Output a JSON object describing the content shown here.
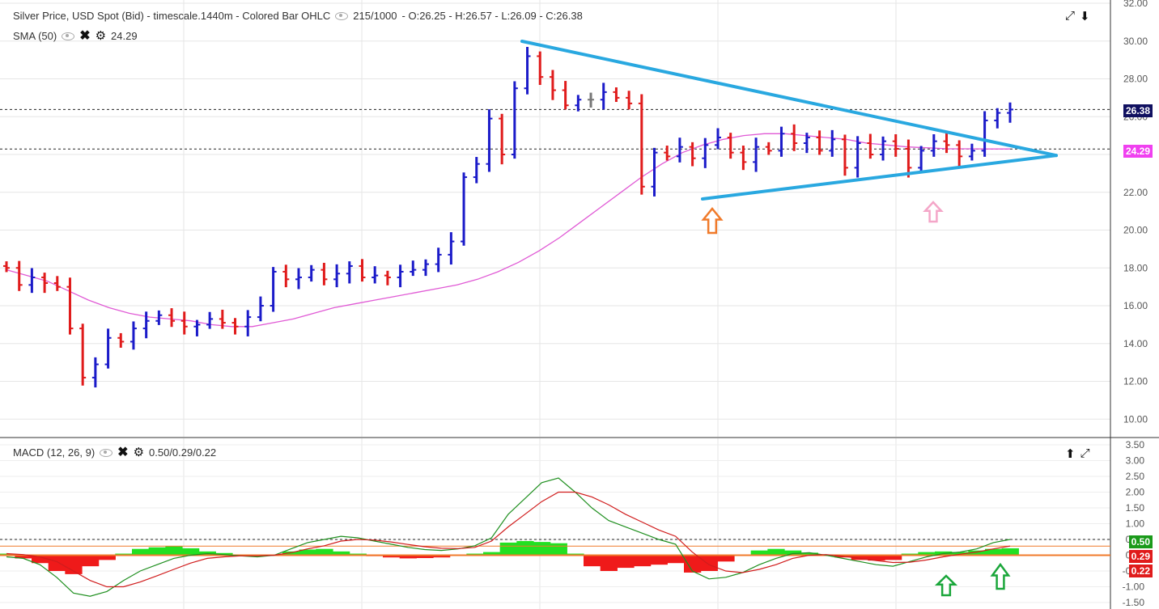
{
  "header": {
    "title": "Silver Price, USD Spot (Bid) - timescale.1440m - Colored Bar OHLC",
    "count": "215/1000",
    "ohlc": "- O:26.25 - H:26.57 - L:26.09 - C:26.38",
    "sma_label": "SMA (50)",
    "sma_value": "24.29"
  },
  "macd_header": {
    "label": "MACD (12, 26, 9)",
    "values": "0.50/0.29/0.22"
  },
  "price_tags": {
    "last": "26.38",
    "sma": "24.29"
  },
  "macd_tags": {
    "macd": "0.50",
    "signal": "0.29",
    "hist": "0.22"
  },
  "colors": {
    "up": "#1b1bc9",
    "down": "#e01b1b",
    "neutral": "#777777",
    "sma": "#e05ad5",
    "trendline": "#29a8e0",
    "macd_line": "#1f8f1f",
    "signal_line": "#d01c1c",
    "hist_pos": "#22e022",
    "hist_neg": "#ef1a1a",
    "zero_line": "#f07a2a",
    "arrow_orange": "#f07a2a",
    "arrow_pink": "#f4a6c8",
    "arrow_green": "#1aa63a",
    "tag_last": "#101060",
    "tag_sma": "#f040f0",
    "tag_macd": "#1a9a1a",
    "tag_signal": "#e01b1b"
  },
  "icons": [
    "eye-icon",
    "close-icon",
    "gear-icon",
    "expand-icon",
    "down-arrow-icon",
    "up-arrow-icon"
  ],
  "chart_data": [
    {
      "type": "ohlc",
      "title": "Silver Price, USD Spot (Bid) - timescale.1440m - Colored Bar OHLC",
      "ylim": [
        9.5,
        32
      ],
      "y_ticks": [
        "10.00",
        "12.00",
        "14.00",
        "16.00",
        "18.00",
        "20.00",
        "22.00",
        "24.00",
        "26.00",
        "28.00",
        "30.00",
        "32.00"
      ],
      "grid": true,
      "closes": [
        18.0,
        17.1,
        17.5,
        17.2,
        17.0,
        14.8,
        12.2,
        12.9,
        14.3,
        14.1,
        14.8,
        15.2,
        15.5,
        15.2,
        14.9,
        15.0,
        15.3,
        15.1,
        14.9,
        15.4,
        16.0,
        17.8,
        17.4,
        17.5,
        17.9,
        17.4,
        17.7,
        18.1,
        17.5,
        17.6,
        17.5,
        17.8,
        17.9,
        18.2,
        18.7,
        19.4,
        22.8,
        23.5,
        25.9,
        24.0,
        27.5,
        29.2,
        28.1,
        27.4,
        26.6,
        26.9,
        26.9,
        27.3,
        27.0,
        26.7,
        22.3,
        24.1,
        23.9,
        24.4,
        23.8,
        24.5,
        24.9,
        24.1,
        23.6,
        24.4,
        24.2,
        25.1,
        24.6,
        24.9,
        24.2,
        24.8,
        23.3,
        24.6,
        24.0,
        24.7,
        24.3,
        23.3,
        24.2,
        24.7,
        24.5,
        23.9,
        24.2,
        25.8,
        26.2,
        26.38
      ],
      "sma_50": [
        17.9,
        17.6,
        17.3,
        16.8,
        16.3,
        15.9,
        15.6,
        15.4,
        15.3,
        15.2,
        15.0,
        14.9,
        14.9,
        15.1,
        15.3,
        15.6,
        15.9,
        16.1,
        16.3,
        16.5,
        16.7,
        16.9,
        17.1,
        17.4,
        17.8,
        18.3,
        18.9,
        19.6,
        20.4,
        21.2,
        22.0,
        22.8,
        23.5,
        24.1,
        24.5,
        24.8,
        25.0,
        25.1,
        25.1,
        25.0,
        24.9,
        24.8,
        24.6,
        24.5,
        24.4,
        24.35,
        24.3,
        24.3,
        24.29,
        24.29
      ],
      "price_line_last": 26.38,
      "price_line_sma": 24.29,
      "trendlines": [
        {
          "from": [
            29.99,
            0
          ],
          "to": [
            23.95,
            1
          ]
        },
        {
          "from": [
            21.65,
            0
          ],
          "to": [
            23.95,
            1
          ]
        }
      ]
    },
    {
      "type": "line",
      "title": "MACD (12, 26, 9)",
      "ylim": [
        -1.5,
        3.5
      ],
      "y_ticks": [
        "3.50",
        "3.00",
        "2.50",
        "2.00",
        "1.50",
        "1.00",
        "0.50",
        "0.00",
        "-0.50",
        "-1.00",
        "-1.50"
      ],
      "series": [
        {
          "values": [
            -0.05,
            -0.1,
            -0.3,
            -0.7,
            -1.2,
            -1.3,
            -1.15,
            -0.8,
            -0.5,
            -0.3,
            -0.1,
            0.0,
            0.05,
            0.02,
            -0.02,
            -0.05,
            0.0,
            0.2,
            0.4,
            0.5,
            0.6,
            0.55,
            0.45,
            0.35,
            0.25,
            0.18,
            0.15,
            0.2,
            0.3,
            0.55,
            1.3,
            1.8,
            2.3,
            2.45,
            2.0,
            1.5,
            1.1,
            0.9,
            0.7,
            0.5,
            0.35,
            -0.5,
            -0.75,
            -0.7,
            -0.55,
            -0.3,
            -0.1,
            0.05,
            0.08,
            0.0,
            -0.1,
            -0.2,
            -0.3,
            -0.35,
            -0.2,
            -0.05,
            0.05,
            0.1,
            0.2,
            0.4,
            0.5
          ]
        },
        {
          "values": [
            0.05,
            0.02,
            -0.05,
            -0.2,
            -0.5,
            -0.8,
            -1.0,
            -1.0,
            -0.85,
            -0.65,
            -0.45,
            -0.25,
            -0.1,
            -0.05,
            -0.02,
            -0.02,
            0.0,
            0.08,
            0.2,
            0.3,
            0.45,
            0.5,
            0.48,
            0.42,
            0.34,
            0.27,
            0.22,
            0.21,
            0.25,
            0.45,
            0.9,
            1.3,
            1.7,
            2.0,
            2.0,
            1.85,
            1.6,
            1.3,
            1.05,
            0.8,
            0.6,
            0.1,
            -0.3,
            -0.5,
            -0.55,
            -0.45,
            -0.3,
            -0.1,
            0.0,
            0.02,
            -0.03,
            -0.1,
            -0.17,
            -0.23,
            -0.22,
            -0.15,
            -0.05,
            0.03,
            0.1,
            0.2,
            0.29
          ]
        }
      ],
      "histogram": [
        0.05,
        -0.1,
        -0.25,
        -0.5,
        -0.6,
        -0.35,
        -0.15,
        0.05,
        0.2,
        0.25,
        0.28,
        0.22,
        0.12,
        0.07,
        0.0,
        -0.02,
        0.0,
        0.12,
        0.18,
        0.2,
        0.12,
        0.05,
        -0.03,
        -0.07,
        -0.1,
        -0.09,
        -0.07,
        -0.01,
        0.05,
        0.1,
        0.4,
        0.45,
        0.42,
        0.38,
        0.05,
        -0.35,
        -0.5,
        -0.4,
        -0.35,
        -0.3,
        -0.25,
        -0.55,
        -0.5,
        -0.2,
        0.0,
        0.15,
        0.2,
        0.15,
        0.08,
        -0.02,
        -0.07,
        -0.15,
        -0.17,
        -0.15,
        0.05,
        0.1,
        0.12,
        0.1,
        0.15,
        0.2,
        0.22
      ],
      "zero_line": 0.0,
      "price_line_macd": 0.5,
      "price_line_signal": 0.29
    }
  ]
}
